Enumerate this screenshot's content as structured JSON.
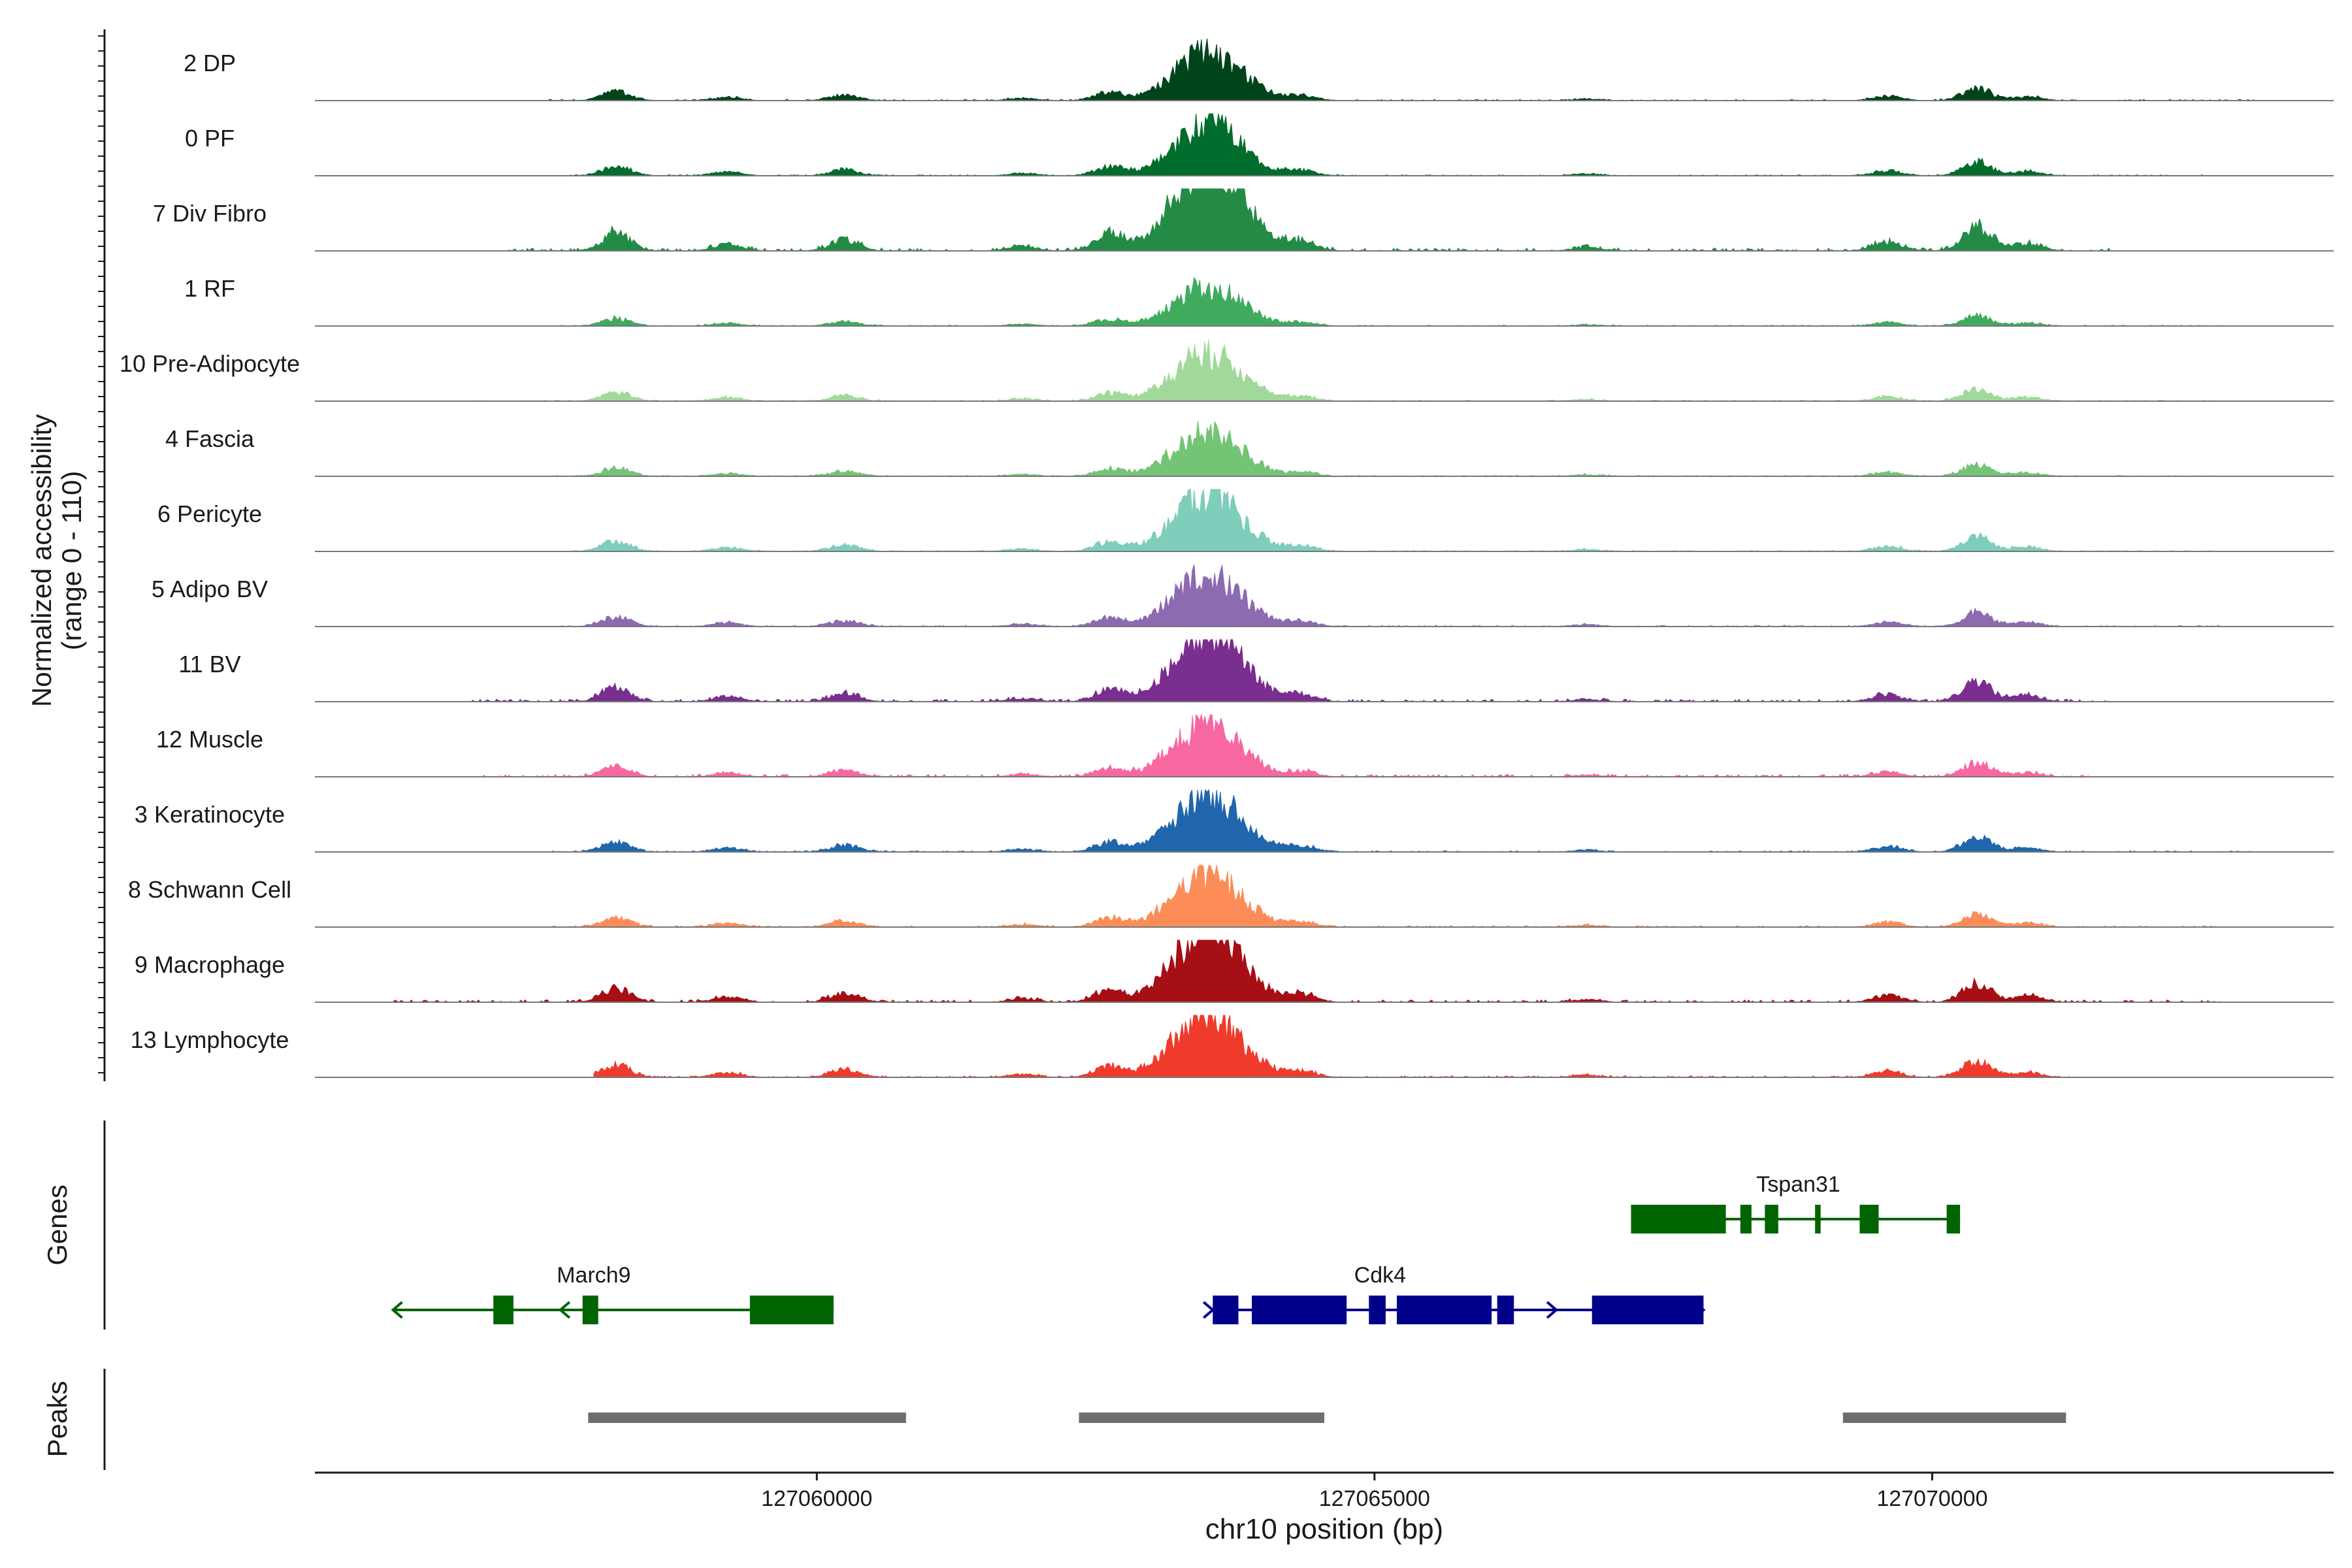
{
  "chart_data": {
    "type": "area",
    "title": "",
    "ylabel_line1": "Normalized accessibility",
    "ylabel_line2": "(range 0 - 110)",
    "xlabel": "chr10 position (bp)",
    "xlim": [
      127055500,
      127073600
    ],
    "ylim": [
      0,
      110
    ],
    "xticks": [
      127060000,
      127065000,
      127070000
    ],
    "xtick_labels": [
      "127060000",
      "127065000",
      "127070000"
    ],
    "genes_label": "Genes",
    "peaks_label": "Peaks",
    "peak_centers": [
      [
        127058200,
        16
      ],
      [
        127060250,
        10
      ],
      [
        127062620,
        14
      ],
      [
        127063500,
        48
      ],
      [
        127063520,
        38
      ],
      [
        127064350,
        8
      ],
      [
        127069600,
        8
      ],
      [
        127070400,
        22
      ],
      [
        127070850,
        7
      ],
      [
        127061850,
        4
      ],
      [
        127059200,
        6
      ],
      [
        127066900,
        3
      ]
    ],
    "series": [
      {
        "name": "2 DP",
        "color": "#00441b",
        "scale": 0.55,
        "bg": 0.05,
        "range": [
          127057600,
          127072900
        ],
        "seed": 1
      },
      {
        "name": "0 PF",
        "color": "#006d2c",
        "scale": 0.6,
        "bg": 0.04,
        "range": [
          127057600,
          127072600
        ],
        "seed": 2
      },
      {
        "name": "7 Div Fibro",
        "color": "#238b45",
        "scale": 1.1,
        "bg": 0.12,
        "range": [
          127057100,
          127071600
        ],
        "seed": 3
      },
      {
        "name": "1 RF",
        "color": "#41ab5d",
        "scale": 0.45,
        "bg": 0.04,
        "range": [
          127057600,
          127072600
        ],
        "seed": 4
      },
      {
        "name": "10 Pre-Adipocyte",
        "color": "#a1d99b",
        "scale": 0.55,
        "bg": 0.05,
        "range": [
          127056500,
          127072600
        ],
        "seed": 5
      },
      {
        "name": "4 Fascia",
        "color": "#74c476",
        "scale": 0.5,
        "bg": 0.04,
        "range": [
          127057600,
          127072600
        ],
        "seed": 6
      },
      {
        "name": "6 Pericyte",
        "color": "#7fcdbb",
        "scale": 0.65,
        "bg": 0.04,
        "range": [
          127057600,
          127072600
        ],
        "seed": 7
      },
      {
        "name": "5 Adipo BV",
        "color": "#8c6bb1",
        "scale": 0.6,
        "bg": 0.05,
        "range": [
          127057600,
          127072600
        ],
        "seed": 8
      },
      {
        "name": "11 BV",
        "color": "#7a2e8f",
        "scale": 0.85,
        "bg": 0.1,
        "range": [
          127056900,
          127071600
        ],
        "seed": 9
      },
      {
        "name": "12 Muscle",
        "color": "#f768a1",
        "scale": 0.6,
        "bg": 0.1,
        "range": [
          127057000,
          127071400
        ],
        "seed": 10
      },
      {
        "name": "3 Keratinocyte",
        "color": "#2166ac",
        "scale": 0.65,
        "bg": 0.05,
        "range": [
          127057600,
          127072900
        ],
        "seed": 11
      },
      {
        "name": "8 Schwann Cell",
        "color": "#fc8d59",
        "scale": 0.6,
        "bg": 0.06,
        "range": [
          127057600,
          127072600
        ],
        "seed": 12
      },
      {
        "name": "9 Macrophage",
        "color": "#a50f15",
        "scale": 0.85,
        "bg": 0.1,
        "range": [
          127056200,
          127072600
        ],
        "seed": 13
      },
      {
        "name": "13 Lymphocyte",
        "color": "#ef3b2c",
        "scale": 0.75,
        "bg": 0.06,
        "range": [
          127058000,
          127071300
        ],
        "seed": 14
      }
    ],
    "genes": [
      {
        "name": "Tspan31",
        "color": "#006400",
        "start": 127067300,
        "end": 127070250,
        "strand": "+",
        "row": 0,
        "arrows": false,
        "exons": [
          [
            127067300,
            127068150
          ],
          [
            127068280,
            127068380
          ],
          [
            127068500,
            127068620
          ],
          [
            127068950,
            127069000
          ],
          [
            127069350,
            127069520
          ],
          [
            127070130,
            127070250
          ]
        ]
      },
      {
        "name": "March9",
        "color": "#006400",
        "start": 127056200,
        "end": 127060150,
        "strand": "-",
        "row": 1,
        "arrows": true,
        "exons": [
          [
            127057100,
            127057280
          ],
          [
            127057900,
            127058040
          ],
          [
            127059400,
            127060150
          ]
        ]
      },
      {
        "name": "Cdk4",
        "color": "#00008b",
        "start": 127063550,
        "end": 127067950,
        "strand": "+",
        "row": 1,
        "arrows": true,
        "exons": [
          [
            127063550,
            127063780
          ],
          [
            127063900,
            127064750
          ],
          [
            127064950,
            127065100
          ],
          [
            127065200,
            127066050
          ],
          [
            127066100,
            127066250
          ],
          [
            127066950,
            127067950
          ]
        ]
      }
    ],
    "peaks": [
      [
        127057950,
        127060800
      ],
      [
        127062350,
        127064550
      ],
      [
        127069200,
        127071200
      ]
    ]
  }
}
